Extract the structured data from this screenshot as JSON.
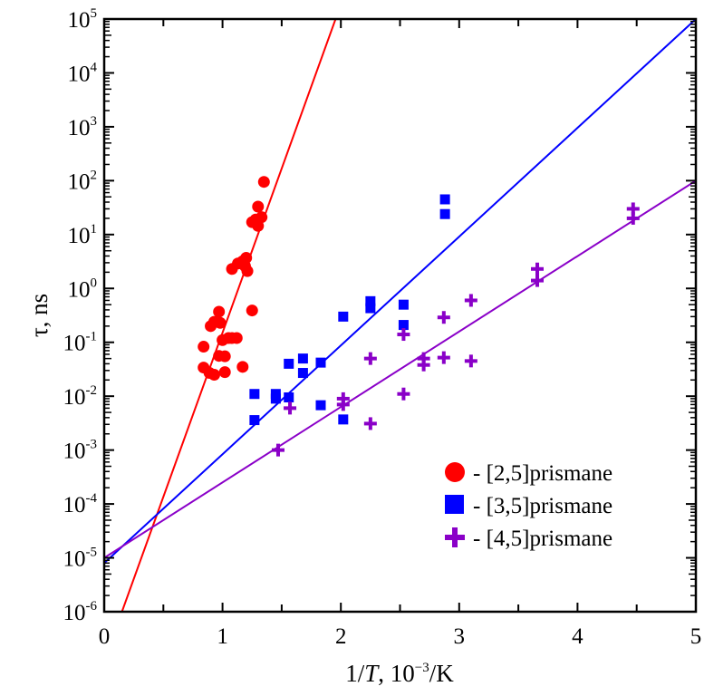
{
  "chart_data": {
    "type": "scatter",
    "title": "",
    "xlabel": "1/T, 10⁻³/K",
    "xlabel_parts": {
      "pre": "1/",
      "italic": "T",
      "post": ", 10",
      "sup": "−3",
      "tail": "/K"
    },
    "ylabel": "τ, ns",
    "xlim": [
      0,
      5
    ],
    "ylim": [
      1e-06,
      100000.0
    ],
    "yscale": "log",
    "grid": false,
    "legend_position": "bottom-right",
    "x_ticks": [
      0,
      1,
      2,
      3,
      4,
      5
    ],
    "x_tick_labels": [
      "0",
      "1",
      "2",
      "3",
      "4",
      "5"
    ],
    "y_ticks": [
      -6,
      -5,
      -4,
      -3,
      -2,
      -1,
      0,
      1,
      2,
      3,
      4,
      5
    ],
    "y_tick_labels": [
      {
        "base": "10",
        "exp": "-6"
      },
      {
        "base": "10",
        "exp": "-5"
      },
      {
        "base": "10",
        "exp": "-4"
      },
      {
        "base": "10",
        "exp": "-3"
      },
      {
        "base": "10",
        "exp": "-2"
      },
      {
        "base": "10",
        "exp": "-1"
      },
      {
        "base": "10",
        "exp": "0"
      },
      {
        "base": "10",
        "exp": "1"
      },
      {
        "base": "10",
        "exp": "2"
      },
      {
        "base": "10",
        "exp": "3"
      },
      {
        "base": "10",
        "exp": "4"
      },
      {
        "base": "10",
        "exp": "5"
      }
    ],
    "series": [
      {
        "name": "[2,5]prismane",
        "legend_label": "- [2,5]prismane",
        "marker": "circle",
        "color": "#ff0000",
        "points": [
          [
            1.35,
            95
          ],
          [
            1.3,
            33
          ],
          [
            1.33,
            21
          ],
          [
            1.25,
            17
          ],
          [
            1.28,
            19
          ],
          [
            1.3,
            14.5
          ],
          [
            1.2,
            3.7
          ],
          [
            1.17,
            3.2
          ],
          [
            1.13,
            2.9
          ],
          [
            1.19,
            2.6
          ],
          [
            1.08,
            2.3
          ],
          [
            1.21,
            2.1
          ],
          [
            1.25,
            0.39
          ],
          [
            0.97,
            0.37
          ],
          [
            0.93,
            0.24
          ],
          [
            0.98,
            0.23
          ],
          [
            0.9,
            0.2
          ],
          [
            1.08,
            0.12
          ],
          [
            1.05,
            0.12
          ],
          [
            1.12,
            0.12
          ],
          [
            1.0,
            0.11
          ],
          [
            0.84,
            0.083
          ],
          [
            0.97,
            0.056
          ],
          [
            1.02,
            0.055
          ],
          [
            0.84,
            0.034
          ],
          [
            1.17,
            0.035
          ],
          [
            0.89,
            0.027
          ],
          [
            0.93,
            0.025
          ],
          [
            1.02,
            0.028
          ]
        ],
        "fit_line": {
          "x": [
            0.15,
            1.93
          ],
          "y": [
            1e-06,
            70000.0
          ]
        }
      },
      {
        "name": "[3,5]prismane",
        "legend_label": "- [3,5]prismane",
        "marker": "square",
        "color": "#0000ff",
        "points": [
          [
            2.88,
            45
          ],
          [
            2.88,
            24
          ],
          [
            2.25,
            0.58
          ],
          [
            2.25,
            0.43
          ],
          [
            2.53,
            0.5
          ],
          [
            2.53,
            0.21
          ],
          [
            2.02,
            0.3
          ],
          [
            1.56,
            0.04
          ],
          [
            1.68,
            0.05
          ],
          [
            1.68,
            0.027
          ],
          [
            1.83,
            0.042
          ],
          [
            1.27,
            0.011
          ],
          [
            1.45,
            0.011
          ],
          [
            1.45,
            0.009
          ],
          [
            1.56,
            0.0095
          ],
          [
            1.83,
            0.0068
          ],
          [
            1.27,
            0.0036
          ],
          [
            2.02,
            0.0037
          ]
        ],
        "fit_line": {
          "x": [
            0,
            5
          ],
          "y": [
            8e-06,
            100000.0
          ]
        }
      },
      {
        "name": "[4,5]prismane",
        "legend_label": "- [4,5]prismane",
        "marker": "plus",
        "color": "#8a00c8",
        "points": [
          [
            4.47,
            30
          ],
          [
            4.47,
            20
          ],
          [
            3.66,
            2.3
          ],
          [
            3.66,
            1.4
          ],
          [
            3.1,
            0.6
          ],
          [
            2.87,
            0.29
          ],
          [
            2.53,
            0.14
          ],
          [
            2.25,
            0.05
          ],
          [
            2.7,
            0.05
          ],
          [
            2.7,
            0.038
          ],
          [
            2.87,
            0.052
          ],
          [
            3.1,
            0.045
          ],
          [
            2.53,
            0.011
          ],
          [
            2.02,
            0.009
          ],
          [
            2.02,
            0.007
          ],
          [
            1.57,
            0.006
          ],
          [
            2.25,
            0.0031
          ],
          [
            1.47,
            0.001
          ]
        ],
        "fit_line": {
          "x": [
            0,
            5
          ],
          "y": [
            1e-05,
            100
          ]
        }
      }
    ]
  }
}
